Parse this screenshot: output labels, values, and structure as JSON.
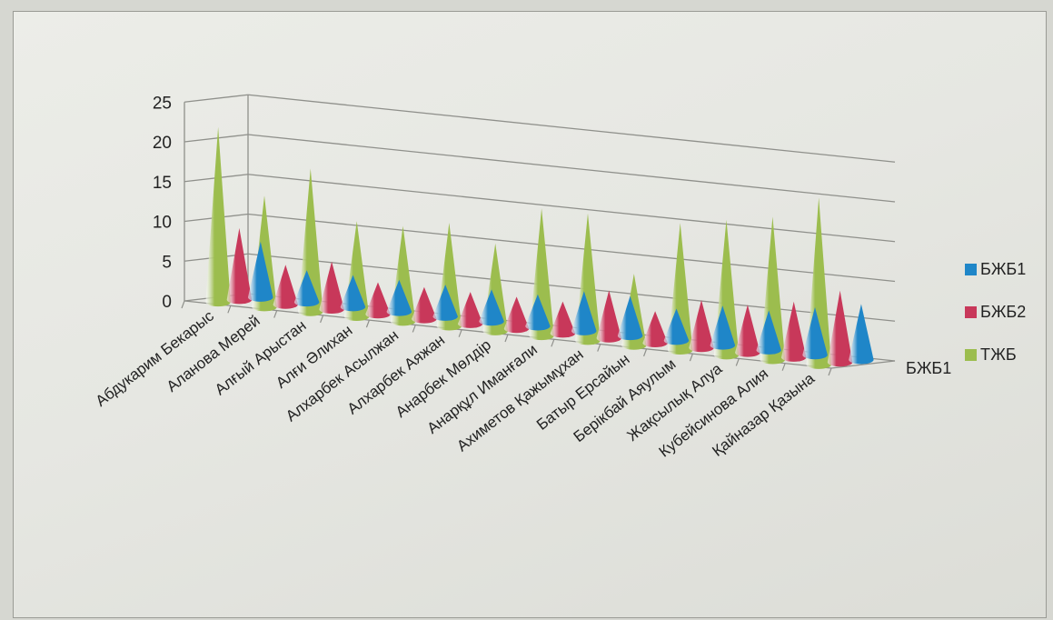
{
  "chart_data": {
    "type": "bar",
    "subtype": "3d-cone",
    "categories": [
      "Абдукарим Бекарыс",
      "Аланова Мерей",
      "Алғый Арыстан",
      "Алғи Әлихан",
      "Алхарбек Асылжан",
      "Алхарбек Аяжан",
      "Анарбек Мөлдір",
      "Анарқұл Иманғали",
      "Ахиметов Қажымұхан",
      "Батыр Ерсайын",
      "Берікбай Аяулым",
      "Жақсылық Алуа",
      "Кубейсинова Алия",
      "Қайназар Қазына"
    ],
    "series": [
      {
        "name": "БЖБ1",
        "color": "#1f86c8",
        "values": [
          7,
          4,
          4,
          4,
          4,
          4,
          4,
          5,
          5,
          4,
          5,
          5,
          6,
          7
        ]
      },
      {
        "name": "БЖБ2",
        "color": "#c8385a",
        "values": [
          9,
          5,
          6,
          4,
          4,
          4,
          4,
          4,
          6,
          4,
          6,
          6,
          7,
          9
        ]
      },
      {
        "name": "ТЖБ",
        "color": "#9cbd4e",
        "values": [
          22,
          14,
          18,
          12,
          12,
          13,
          11,
          16,
          16,
          9,
          16,
          17,
          18,
          21
        ]
      }
    ],
    "y_ticks": [
      "0",
      "5",
      "10",
      "15",
      "20",
      "25"
    ],
    "ylim": [
      0,
      25
    ],
    "depth_label": "БЖБ1",
    "grid": true,
    "legend": {
      "position": "right",
      "entries": [
        "БЖБ1",
        "БЖБ2",
        "ТЖБ"
      ]
    }
  }
}
